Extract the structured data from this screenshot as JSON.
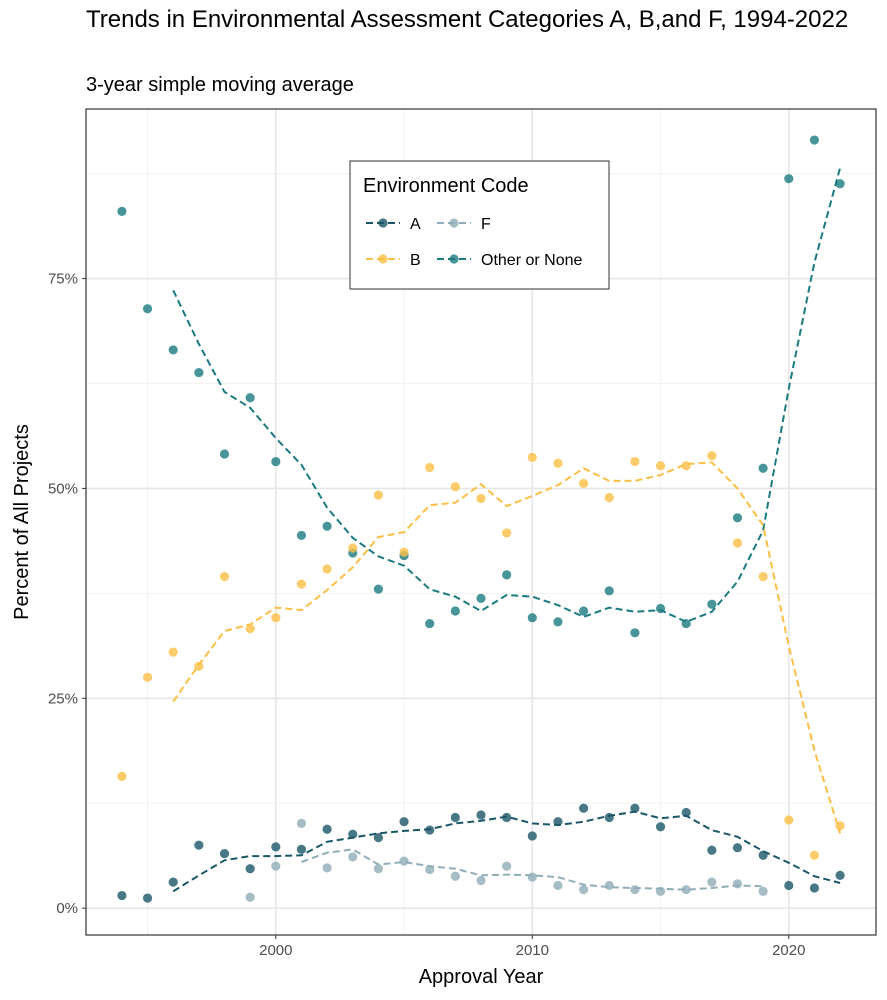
{
  "chart": {
    "title": "Trends in Environmental Assessment Categories A, B,and F, 1994-2022",
    "subtitle": "3-year simple moving average"
  },
  "chart_data": {
    "type": "scatter",
    "title": "Trends in Environmental Assessment Categories A, B,and F, 1994-2022",
    "subtitle": "3-year simple moving average",
    "xlabel": "Approval Year",
    "ylabel": "Percent of All Projects",
    "xlim": [
      1992.6,
      2023.4
    ],
    "ylim": [
      -3.2,
      95.2
    ],
    "x_ticks": [
      2000,
      2010,
      2020
    ],
    "x_tick_labels": [
      "2000",
      "2010",
      "2020"
    ],
    "y_ticks": [
      0,
      25,
      50,
      75
    ],
    "y_tick_labels": [
      "0%",
      "25%",
      "50%",
      "75%"
    ],
    "grid": true,
    "legend": {
      "title": "Environment Code",
      "position": "top-center-inside",
      "entries": [
        "A",
        "F",
        "B",
        "Other or None"
      ]
    },
    "series": [
      {
        "name": "A",
        "color": "#1a5667",
        "points": [
          [
            1994,
            1.5
          ],
          [
            1995,
            1.2
          ],
          [
            1996,
            3.1
          ],
          [
            1997,
            7.5
          ],
          [
            1998,
            6.5
          ],
          [
            1999,
            4.7
          ],
          [
            2000,
            7.3
          ],
          [
            2001,
            7.0
          ],
          [
            2002,
            9.4
          ],
          [
            2003,
            8.8
          ],
          [
            2004,
            8.4
          ],
          [
            2005,
            10.3
          ],
          [
            2006,
            9.3
          ],
          [
            2007,
            10.8
          ],
          [
            2008,
            11.1
          ],
          [
            2009,
            10.8
          ],
          [
            2010,
            8.6
          ],
          [
            2011,
            10.3
          ],
          [
            2012,
            11.9
          ],
          [
            2013,
            10.8
          ],
          [
            2014,
            11.9
          ],
          [
            2015,
            9.7
          ],
          [
            2016,
            11.4
          ],
          [
            2017,
            6.9
          ],
          [
            2018,
            7.2
          ],
          [
            2019,
            6.3
          ],
          [
            2020,
            2.7
          ],
          [
            2021,
            2.4
          ],
          [
            2022,
            3.9
          ]
        ],
        "moving_average": [
          [
            1996,
            2.0
          ],
          [
            1997,
            3.9
          ],
          [
            1998,
            5.7
          ],
          [
            1999,
            6.2
          ],
          [
            2000,
            6.2
          ],
          [
            2001,
            6.3
          ],
          [
            2002,
            7.9
          ],
          [
            2003,
            8.4
          ],
          [
            2004,
            8.9
          ],
          [
            2005,
            9.2
          ],
          [
            2006,
            9.4
          ],
          [
            2007,
            10.1
          ],
          [
            2008,
            10.4
          ],
          [
            2009,
            10.9
          ],
          [
            2010,
            10.1
          ],
          [
            2011,
            9.9
          ],
          [
            2012,
            10.3
          ],
          [
            2013,
            11.0
          ],
          [
            2014,
            11.5
          ],
          [
            2015,
            10.7
          ],
          [
            2016,
            11.0
          ],
          [
            2017,
            9.3
          ],
          [
            2018,
            8.5
          ],
          [
            2019,
            6.8
          ],
          [
            2020,
            5.4
          ],
          [
            2021,
            3.8
          ],
          [
            2022,
            3.0
          ]
        ]
      },
      {
        "name": "F",
        "color": "#90adb8",
        "points": [
          [
            1999,
            1.3
          ],
          [
            2000,
            5.0
          ],
          [
            2001,
            10.1
          ],
          [
            2002,
            4.8
          ],
          [
            2003,
            6.1
          ],
          [
            2004,
            4.7
          ],
          [
            2005,
            5.6
          ],
          [
            2006,
            4.6
          ],
          [
            2007,
            3.8
          ],
          [
            2008,
            3.3
          ],
          [
            2009,
            5.0
          ],
          [
            2010,
            3.7
          ],
          [
            2011,
            2.7
          ],
          [
            2012,
            2.2
          ],
          [
            2013,
            2.7
          ],
          [
            2014,
            2.2
          ],
          [
            2015,
            2.0
          ],
          [
            2016,
            2.2
          ],
          [
            2017,
            3.1
          ],
          [
            2018,
            2.9
          ],
          [
            2019,
            2.0
          ]
        ],
        "moving_average": [
          [
            2001,
            5.5
          ],
          [
            2002,
            6.6
          ],
          [
            2003,
            7.0
          ],
          [
            2004,
            5.2
          ],
          [
            2005,
            5.5
          ],
          [
            2006,
            5.0
          ],
          [
            2007,
            4.7
          ],
          [
            2008,
            3.9
          ],
          [
            2009,
            4.0
          ],
          [
            2010,
            3.9
          ],
          [
            2011,
            3.7
          ],
          [
            2012,
            2.8
          ],
          [
            2013,
            2.5
          ],
          [
            2014,
            2.4
          ],
          [
            2015,
            2.3
          ],
          [
            2016,
            2.2
          ],
          [
            2017,
            2.4
          ],
          [
            2018,
            2.7
          ],
          [
            2019,
            2.6
          ]
        ]
      },
      {
        "name": "B",
        "color": "#fbbf45",
        "points": [
          [
            1994,
            15.7
          ],
          [
            1995,
            27.5
          ],
          [
            1996,
            30.5
          ],
          [
            1997,
            28.8
          ],
          [
            1998,
            39.5
          ],
          [
            1999,
            33.3
          ],
          [
            2000,
            34.6
          ],
          [
            2001,
            38.6
          ],
          [
            2002,
            40.4
          ],
          [
            2003,
            42.9
          ],
          [
            2004,
            49.2
          ],
          [
            2005,
            42.4
          ],
          [
            2006,
            52.5
          ],
          [
            2007,
            50.2
          ],
          [
            2008,
            48.8
          ],
          [
            2009,
            44.7
          ],
          [
            2010,
            53.7
          ],
          [
            2011,
            53.0
          ],
          [
            2012,
            50.6
          ],
          [
            2013,
            48.9
          ],
          [
            2014,
            53.2
          ],
          [
            2015,
            52.7
          ],
          [
            2016,
            52.7
          ],
          [
            2017,
            53.9
          ],
          [
            2018,
            43.5
          ],
          [
            2019,
            39.5
          ],
          [
            2020,
            10.5
          ],
          [
            2021,
            6.3
          ],
          [
            2022,
            9.8
          ]
        ],
        "moving_average": [
          [
            1996,
            24.6
          ],
          [
            1997,
            29.0
          ],
          [
            1998,
            33.0
          ],
          [
            1999,
            33.8
          ],
          [
            2000,
            35.8
          ],
          [
            2001,
            35.5
          ],
          [
            2002,
            37.9
          ],
          [
            2003,
            40.6
          ],
          [
            2004,
            44.2
          ],
          [
            2005,
            44.8
          ],
          [
            2006,
            48.0
          ],
          [
            2007,
            48.3
          ],
          [
            2008,
            50.5
          ],
          [
            2009,
            47.9
          ],
          [
            2010,
            49.1
          ],
          [
            2011,
            50.4
          ],
          [
            2012,
            52.4
          ],
          [
            2013,
            50.9
          ],
          [
            2014,
            50.9
          ],
          [
            2015,
            51.6
          ],
          [
            2016,
            52.9
          ],
          [
            2017,
            53.1
          ],
          [
            2018,
            50.0
          ],
          [
            2019,
            45.6
          ],
          [
            2020,
            31.2
          ],
          [
            2021,
            18.8
          ],
          [
            2022,
            8.9
          ]
        ]
      },
      {
        "name": "Other or None",
        "color": "#1a7a80",
        "points": [
          [
            1994,
            83.0
          ],
          [
            1995,
            71.4
          ],
          [
            1996,
            66.5
          ],
          [
            1997,
            63.8
          ],
          [
            1998,
            54.1
          ],
          [
            1999,
            60.8
          ],
          [
            2000,
            53.2
          ],
          [
            2001,
            44.4
          ],
          [
            2002,
            45.5
          ],
          [
            2003,
            42.3
          ],
          [
            2004,
            38.0
          ],
          [
            2005,
            42.0
          ],
          [
            2006,
            33.9
          ],
          [
            2007,
            35.4
          ],
          [
            2008,
            36.9
          ],
          [
            2009,
            39.7
          ],
          [
            2010,
            34.6
          ],
          [
            2011,
            34.1
          ],
          [
            2012,
            35.4
          ],
          [
            2013,
            37.8
          ],
          [
            2014,
            32.8
          ],
          [
            2015,
            35.7
          ],
          [
            2016,
            33.9
          ],
          [
            2017,
            36.2
          ],
          [
            2018,
            46.5
          ],
          [
            2019,
            52.4
          ],
          [
            2020,
            86.9
          ],
          [
            2021,
            91.5
          ],
          [
            2022,
            86.3
          ]
        ],
        "moving_average": [
          [
            1996,
            73.6
          ],
          [
            1997,
            67.2
          ],
          [
            1998,
            61.5
          ],
          [
            1999,
            59.6
          ],
          [
            2000,
            56.0
          ],
          [
            2001,
            52.8
          ],
          [
            2002,
            47.7
          ],
          [
            2003,
            44.1
          ],
          [
            2004,
            41.9
          ],
          [
            2005,
            40.8
          ],
          [
            2006,
            38.0
          ],
          [
            2007,
            37.1
          ],
          [
            2008,
            35.4
          ],
          [
            2009,
            37.3
          ],
          [
            2010,
            37.1
          ],
          [
            2011,
            36.1
          ],
          [
            2012,
            34.7
          ],
          [
            2013,
            35.8
          ],
          [
            2014,
            35.3
          ],
          [
            2015,
            35.5
          ],
          [
            2016,
            34.1
          ],
          [
            2017,
            35.3
          ],
          [
            2018,
            38.9
          ],
          [
            2019,
            45.0
          ],
          [
            2020,
            61.9
          ],
          [
            2021,
            76.9
          ],
          [
            2022,
            88.2
          ]
        ]
      }
    ]
  }
}
